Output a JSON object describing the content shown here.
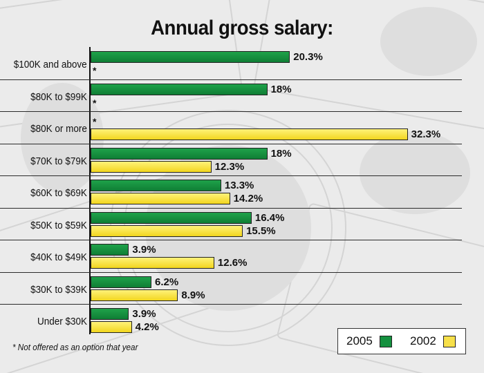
{
  "chart_data": {
    "type": "bar",
    "orientation": "horizontal",
    "title": "Annual gross salary:",
    "categories": [
      "$100K and above",
      "$80K to $99K",
      "$80K or more",
      "$70K to $79K",
      "$60K to $69K",
      "$50K to $59K",
      "$40K to $49K",
      "$30K to $39K",
      "Under $30K"
    ],
    "series": [
      {
        "name": "2005",
        "color": "#15913f",
        "values": [
          20.3,
          18,
          null,
          18,
          13.3,
          16.4,
          3.9,
          6.2,
          3.9
        ],
        "labels": [
          "20.3%",
          "18%",
          "*",
          "18%",
          "13.3%",
          "16.4%",
          "3.9%",
          "6.2%",
          "3.9%"
        ]
      },
      {
        "name": "2002",
        "color": "#f7e04a",
        "values": [
          null,
          null,
          32.3,
          12.3,
          14.2,
          15.5,
          12.6,
          8.9,
          4.2
        ],
        "labels": [
          "*",
          "*",
          "32.3%",
          "12.3%",
          "14.2%",
          "15.5%",
          "12.6%",
          "8.9%",
          "4.2%"
        ]
      }
    ],
    "xlim": [
      0,
      36
    ],
    "legend_position": "bottom-right",
    "footnote": "* Not offered as an option that year"
  }
}
